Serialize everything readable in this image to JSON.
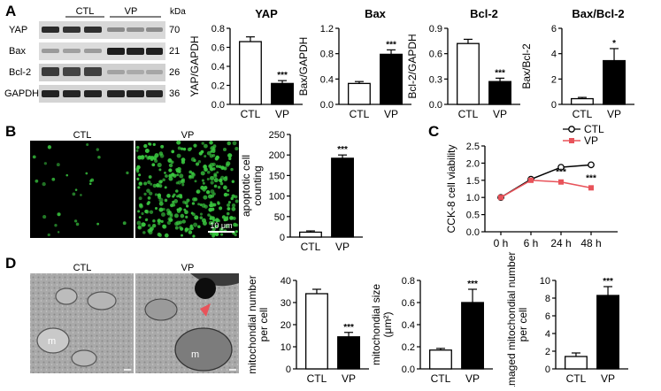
{
  "panels": {
    "A": "A",
    "B": "B",
    "C": "C",
    "D": "D"
  },
  "western_blot": {
    "groups": [
      "CTL",
      "VP"
    ],
    "kda_label": "kDa",
    "rows": [
      {
        "protein": "YAP",
        "kda": "70"
      },
      {
        "protein": "Bax",
        "kda": "21"
      },
      {
        "protein": "Bcl-2",
        "kda": "26"
      },
      {
        "protein": "GAPDH",
        "kda": "36"
      }
    ]
  },
  "micrographs_B": {
    "left_label": "CTL",
    "right_label": "VP",
    "scale_bar": "10 μm"
  },
  "micrographs_D": {
    "left_label": "CTL",
    "right_label": "VP",
    "left_marker": "m",
    "right_marker": "m"
  },
  "colors": {
    "bar_ctl": "#ffffff",
    "bar_vp": "#000000",
    "vp_line": "#e8535a",
    "fluor_green": "#39c63f"
  },
  "chart_data": [
    {
      "id": "yap",
      "type": "bar",
      "title": "YAP",
      "ylabel": "YAP/GAPDH",
      "categories": [
        "CTL",
        "VP"
      ],
      "values": [
        0.66,
        0.22
      ],
      "errors": [
        0.05,
        0.03
      ],
      "ylim": [
        0,
        0.8
      ],
      "ticks": [
        "0.0",
        "0.2",
        "0.4",
        "0.6",
        "0.8"
      ],
      "significance": "***"
    },
    {
      "id": "bax",
      "type": "bar",
      "title": "Bax",
      "ylabel": "Bax/GAPDH",
      "categories": [
        "CTL",
        "VP"
      ],
      "values": [
        0.33,
        0.79
      ],
      "errors": [
        0.03,
        0.07
      ],
      "ylim": [
        0,
        1.2
      ],
      "ticks": [
        "0.0",
        "0.4",
        "0.8",
        "1.2"
      ],
      "significance": "***"
    },
    {
      "id": "bcl2",
      "type": "bar",
      "title": "Bcl-2",
      "ylabel": "Bcl-2/GAPDH",
      "categories": [
        "CTL",
        "VP"
      ],
      "values": [
        0.72,
        0.27
      ],
      "errors": [
        0.05,
        0.04
      ],
      "ylim": [
        0,
        0.9
      ],
      "ticks": [
        "0.0",
        "0.3",
        "0.6",
        "0.9"
      ],
      "significance": "***"
    },
    {
      "id": "baxbcl2",
      "type": "bar",
      "title": "Bax/Bcl-2",
      "ylabel": "Bax/Bcl-2",
      "categories": [
        "CTL",
        "VP"
      ],
      "values": [
        0.45,
        3.45
      ],
      "errors": [
        0.1,
        0.95
      ],
      "ylim": [
        0,
        6
      ],
      "ticks": [
        "0",
        "2",
        "4",
        "6"
      ],
      "significance": "*"
    },
    {
      "id": "apoptotic",
      "type": "bar",
      "title": "",
      "ylabel": "apoptotic cell counting",
      "categories": [
        "CTL",
        "VP"
      ],
      "values": [
        12,
        192
      ],
      "errors": [
        3,
        8
      ],
      "ylim": [
        0,
        250
      ],
      "ticks": [
        "0",
        "50",
        "100",
        "150",
        "200",
        "250"
      ],
      "significance": "***"
    },
    {
      "id": "cck8",
      "type": "line",
      "title": "",
      "ylabel": "CCK-8 cell viability",
      "x": [
        "0 h",
        "6 h",
        "24 h",
        "48 h"
      ],
      "series": [
        {
          "name": "CTL",
          "values": [
            1.0,
            1.53,
            1.88,
            1.95
          ],
          "errors": [
            0.02,
            0.03,
            0.05,
            0.03
          ]
        },
        {
          "name": "VP",
          "values": [
            1.0,
            1.5,
            1.45,
            1.28
          ],
          "errors": [
            0.02,
            0.03,
            0.05,
            0.04
          ]
        }
      ],
      "ylim": [
        0,
        2.5
      ],
      "ticks": [
        "0.0",
        "0.5",
        "1.0",
        "1.5",
        "2.0",
        "2.5"
      ],
      "significance": [
        "",
        "",
        "***",
        "***"
      ]
    },
    {
      "id": "mitonum",
      "type": "bar",
      "title": "",
      "ylabel": "mitochondial number per cell",
      "categories": [
        "CTL",
        "VP"
      ],
      "values": [
        34,
        14.5
      ],
      "errors": [
        2,
        2
      ],
      "ylim": [
        0,
        40
      ],
      "ticks": [
        "0",
        "10",
        "20",
        "30",
        "40"
      ],
      "significance": "***"
    },
    {
      "id": "mitosize",
      "type": "bar",
      "title": "",
      "ylabel": "mitochondial size (μm²)",
      "categories": [
        "CTL",
        "VP"
      ],
      "values": [
        0.17,
        0.6
      ],
      "errors": [
        0.015,
        0.12
      ],
      "ylim": [
        0,
        0.8
      ],
      "ticks": [
        "0.0",
        "0.2",
        "0.4",
        "0.6",
        "0.8"
      ],
      "significance": "***"
    },
    {
      "id": "damaged",
      "type": "bar",
      "title": "",
      "ylabel": "damaged mitochondial number per cell",
      "categories": [
        "CTL",
        "VP"
      ],
      "values": [
        1.4,
        8.3
      ],
      "errors": [
        0.4,
        1.0
      ],
      "ylim": [
        0,
        10
      ],
      "ticks": [
        "0",
        "2",
        "4",
        "6",
        "8",
        "10"
      ],
      "significance": "***"
    }
  ]
}
